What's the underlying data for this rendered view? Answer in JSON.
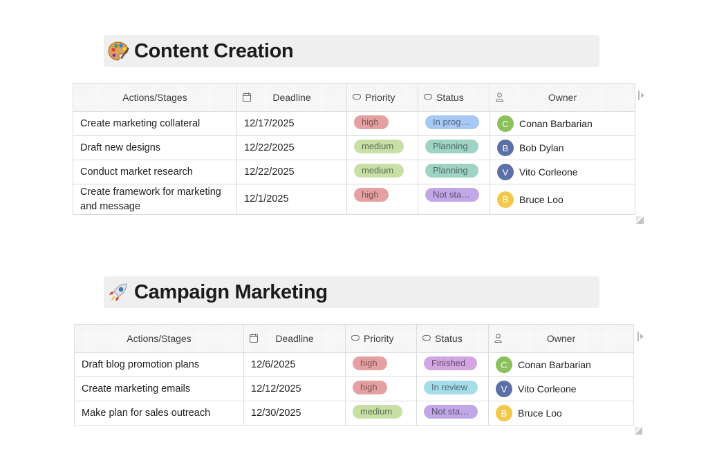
{
  "tables": [
    {
      "title": "Content Creation",
      "emoji_icon": "palette-icon",
      "columns": {
        "actions": "Actions/Stages",
        "deadline": "Deadline",
        "priority": "Priority",
        "status": "Status",
        "owner": "Owner"
      },
      "rows": [
        {
          "action": "Create marketing collateral",
          "deadline": "12/17/2025",
          "priority": "high",
          "status": "In progress",
          "owner": {
            "name": "Conan Barbarian",
            "initial": "C",
            "color": "#8dbf5a"
          }
        },
        {
          "action": "Draft new designs",
          "deadline": "12/22/2025",
          "priority": "medium",
          "status": "Planning",
          "owner": {
            "name": "Bob Dylan",
            "initial": "B",
            "color": "#5c6fa8"
          }
        },
        {
          "action": "Conduct market research",
          "deadline": "12/22/2025",
          "priority": "medium",
          "status": "Planning",
          "owner": {
            "name": "Vito Corleone",
            "initial": "V",
            "color": "#5c6fa8"
          }
        },
        {
          "action": "Create framework for marketing and message",
          "deadline": "12/1/2025",
          "priority": "high",
          "status": "Not started",
          "owner": {
            "name": "Bruce Loo",
            "initial": "B",
            "color": "#f2c94c"
          }
        }
      ]
    },
    {
      "title": "Campaign Marketing",
      "emoji_icon": "rocket-icon",
      "columns": {
        "actions": "Actions/Stages",
        "deadline": "Deadline",
        "priority": "Priority",
        "status": "Status",
        "owner": "Owner"
      },
      "rows": [
        {
          "action": "Draft blog promotion plans",
          "deadline": "12/6/2025",
          "priority": "high",
          "status": "Finished",
          "owner": {
            "name": "Conan Barbarian",
            "initial": "C",
            "color": "#8dbf5a"
          }
        },
        {
          "action": "Create marketing emails",
          "deadline": "12/12/2025",
          "priority": "high",
          "status": "In review",
          "owner": {
            "name": "Vito Corleone",
            "initial": "V",
            "color": "#5c6fa8"
          }
        },
        {
          "action": "Make plan for sales outreach",
          "deadline": "12/30/2025",
          "priority": "medium",
          "status": "Not started",
          "owner": {
            "name": "Bruce Loo",
            "initial": "B",
            "color": "#f2c94c"
          }
        }
      ]
    }
  ]
}
